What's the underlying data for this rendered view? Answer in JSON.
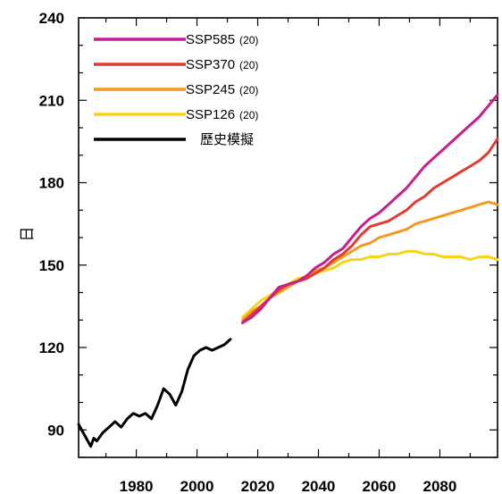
{
  "chart_data": {
    "type": "line",
    "title": "",
    "xlabel": "",
    "ylabel": "日",
    "xlim": [
      1961,
      2099
    ],
    "ylim": [
      80,
      240
    ],
    "x_ticks": [
      1980,
      2000,
      2020,
      2040,
      2060,
      2080
    ],
    "y_ticks": [
      90,
      120,
      150,
      180,
      210,
      240
    ],
    "grid": false,
    "legend_position": "top-left",
    "series": [
      {
        "name": "SSP585",
        "count": "(20)",
        "color": "#c41e8f",
        "x": [
          2015,
          2018,
          2021,
          2024,
          2027,
          2030,
          2033,
          2036,
          2039,
          2042,
          2045,
          2048,
          2051,
          2054,
          2057,
          2060,
          2063,
          2066,
          2069,
          2072,
          2075,
          2078,
          2081,
          2084,
          2087,
          2090,
          2093,
          2096,
          2099
        ],
        "values": [
          129,
          131,
          134,
          138,
          142,
          143,
          144,
          146,
          149,
          151,
          154,
          156,
          160,
          164,
          167,
          169,
          172,
          175,
          178,
          182,
          186,
          189,
          192,
          195,
          198,
          201,
          204,
          208,
          212
        ]
      },
      {
        "name": "SSP370",
        "count": "(20)",
        "color": "#e23b30",
        "x": [
          2015,
          2018,
          2021,
          2024,
          2027,
          2030,
          2033,
          2036,
          2039,
          2042,
          2045,
          2048,
          2051,
          2054,
          2057,
          2060,
          2063,
          2066,
          2069,
          2072,
          2075,
          2078,
          2081,
          2084,
          2087,
          2090,
          2093,
          2096,
          2099
        ],
        "values": [
          129,
          132,
          135,
          138,
          141,
          143,
          144,
          145,
          147,
          149,
          152,
          154,
          157,
          161,
          164,
          165,
          166,
          168,
          170,
          173,
          175,
          178,
          180,
          182,
          184,
          186,
          188,
          191,
          196
        ]
      },
      {
        "name": "SSP245",
        "count": "(20)",
        "color": "#f39a1b",
        "x": [
          2015,
          2018,
          2021,
          2024,
          2027,
          2030,
          2033,
          2036,
          2039,
          2042,
          2045,
          2048,
          2051,
          2054,
          2057,
          2060,
          2063,
          2066,
          2069,
          2072,
          2075,
          2078,
          2081,
          2084,
          2087,
          2090,
          2093,
          2096,
          2099
        ],
        "values": [
          130,
          133,
          135,
          138,
          140,
          142,
          144,
          146,
          148,
          149,
          151,
          153,
          155,
          157,
          158,
          160,
          161,
          162,
          163,
          165,
          166,
          167,
          168,
          169,
          170,
          171,
          172,
          173,
          172
        ]
      },
      {
        "name": "SSP126",
        "count": "(20)",
        "color": "#f7d418",
        "x": [
          2015,
          2018,
          2021,
          2024,
          2027,
          2030,
          2033,
          2036,
          2039,
          2042,
          2045,
          2048,
          2051,
          2054,
          2057,
          2060,
          2063,
          2066,
          2069,
          2072,
          2075,
          2078,
          2081,
          2084,
          2087,
          2090,
          2093,
          2096,
          2099
        ],
        "values": [
          131,
          134,
          137,
          139,
          141,
          143,
          145,
          146,
          147,
          148,
          149,
          151,
          152,
          152,
          153,
          153,
          154,
          154,
          155,
          155,
          154,
          154,
          153,
          153,
          153,
          152,
          153,
          153,
          152
        ]
      },
      {
        "name": "歷史模擬",
        "color": "#000000",
        "x": [
          1961,
          1963,
          1965,
          1966,
          1967,
          1969,
          1971,
          1973,
          1975,
          1977,
          1979,
          1981,
          1983,
          1985,
          1987,
          1989,
          1991,
          1993,
          1995,
          1997,
          1999,
          2001,
          2003,
          2005,
          2007,
          2009,
          2011
        ],
        "values": [
          92,
          88,
          84,
          87,
          86,
          89,
          91,
          93,
          91,
          94,
          96,
          95,
          96,
          94,
          99,
          105,
          103,
          99,
          104,
          112,
          117,
          119,
          120,
          119,
          120,
          121,
          123
        ]
      }
    ]
  }
}
